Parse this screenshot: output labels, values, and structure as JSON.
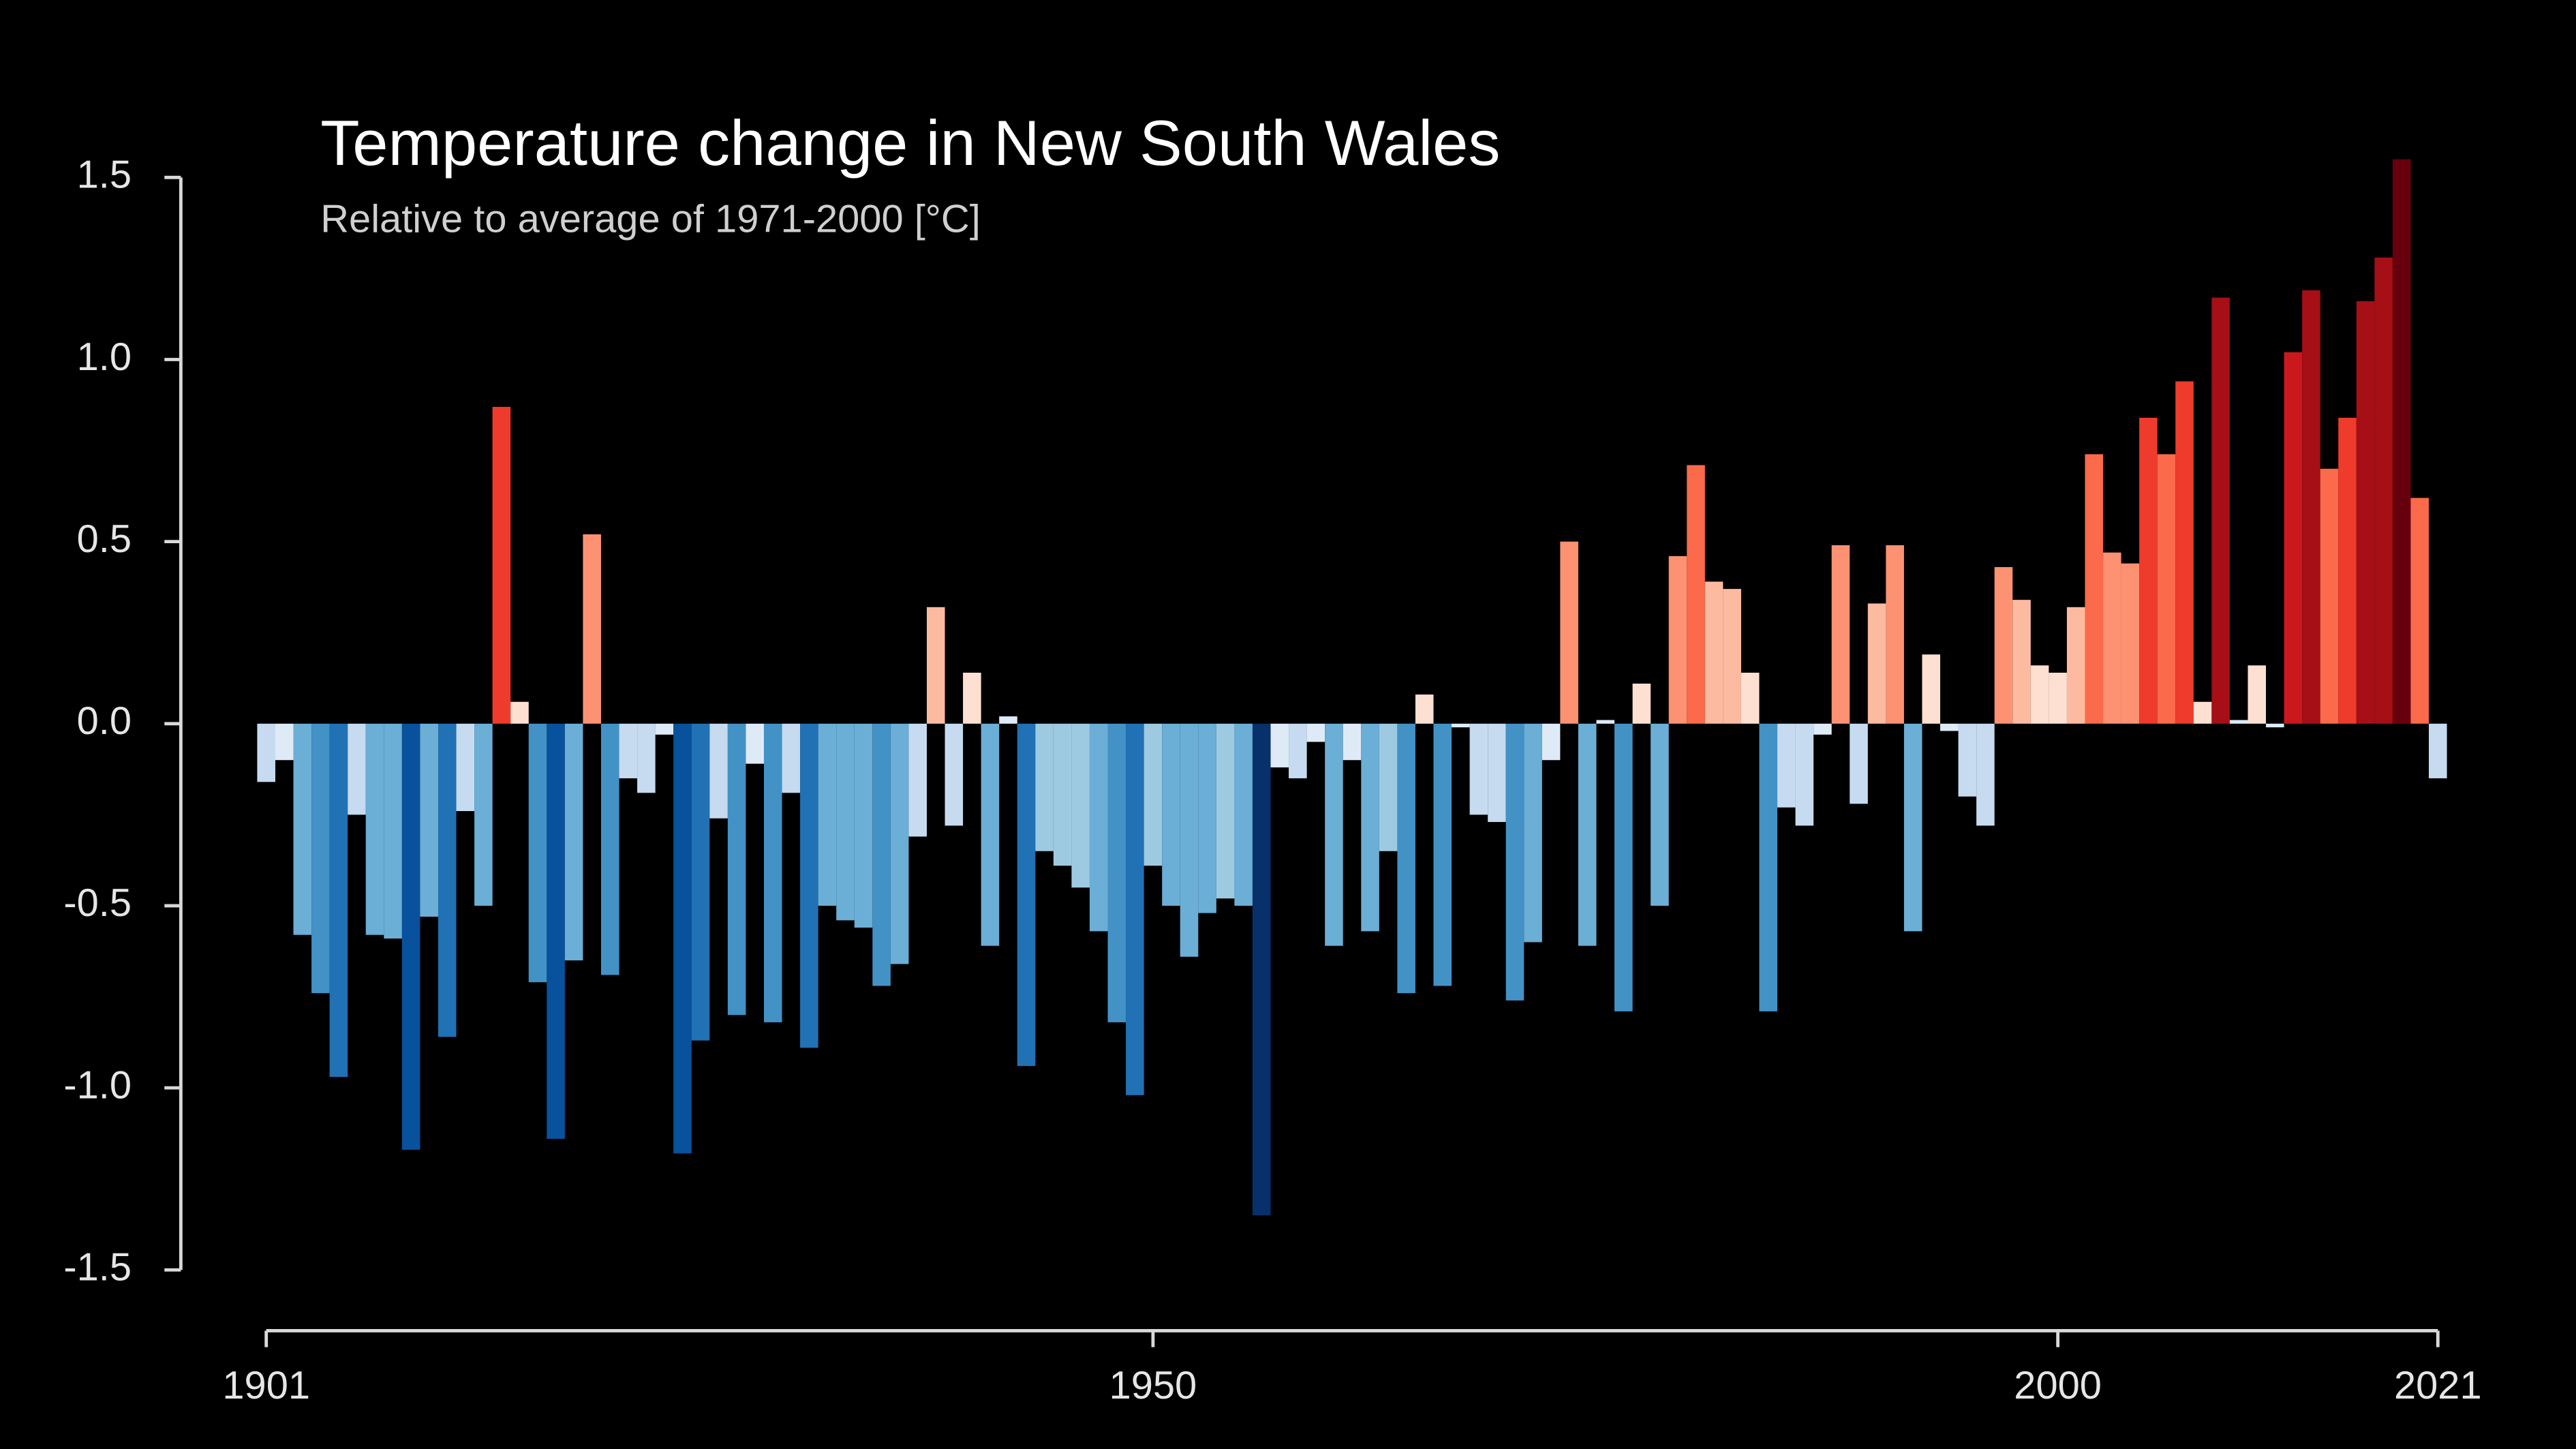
{
  "chart_data": {
    "type": "bar",
    "title": "Temperature change in New South Wales",
    "subtitle": "Relative to average of 1971-2000  [°C]",
    "x": [
      1901,
      1902,
      1903,
      1904,
      1905,
      1906,
      1907,
      1908,
      1909,
      1910,
      1911,
      1912,
      1913,
      1914,
      1915,
      1916,
      1917,
      1918,
      1919,
      1920,
      1921,
      1922,
      1923,
      1924,
      1925,
      1926,
      1927,
      1928,
      1929,
      1930,
      1931,
      1932,
      1933,
      1934,
      1935,
      1936,
      1937,
      1938,
      1939,
      1940,
      1941,
      1942,
      1943,
      1944,
      1945,
      1946,
      1947,
      1948,
      1949,
      1950,
      1951,
      1952,
      1953,
      1954,
      1955,
      1956,
      1957,
      1958,
      1959,
      1960,
      1961,
      1962,
      1963,
      1964,
      1965,
      1966,
      1967,
      1968,
      1969,
      1970,
      1971,
      1972,
      1973,
      1974,
      1975,
      1976,
      1977,
      1978,
      1979,
      1980,
      1981,
      1982,
      1983,
      1984,
      1985,
      1986,
      1987,
      1988,
      1989,
      1990,
      1991,
      1992,
      1993,
      1994,
      1995,
      1996,
      1997,
      1998,
      1999,
      2000,
      2001,
      2002,
      2003,
      2004,
      2005,
      2006,
      2007,
      2008,
      2009,
      2010,
      2011,
      2012,
      2013,
      2014,
      2015,
      2016,
      2017,
      2018,
      2019,
      2020,
      2021
    ],
    "values": [
      -0.16,
      -0.1,
      -0.58,
      -0.74,
      -0.97,
      -0.25,
      -0.58,
      -0.59,
      -1.17,
      -0.53,
      -0.86,
      -0.24,
      -0.5,
      0.87,
      0.06,
      -0.71,
      -1.14,
      -0.65,
      0.52,
      -0.69,
      -0.15,
      -0.19,
      -0.03,
      -1.18,
      -0.87,
      -0.26,
      -0.8,
      -0.11,
      -0.82,
      -0.19,
      -0.89,
      -0.5,
      -0.54,
      -0.56,
      -0.72,
      -0.66,
      -0.31,
      0.32,
      -0.28,
      0.14,
      -0.61,
      0.02,
      -0.94,
      -0.35,
      -0.39,
      -0.45,
      -0.57,
      -0.82,
      -1.02,
      -0.39,
      -0.5,
      -0.64,
      -0.52,
      -0.48,
      -0.5,
      -1.35,
      -0.12,
      -0.15,
      -0.05,
      -0.61,
      -0.1,
      -0.57,
      -0.35,
      -0.74,
      0.08,
      -0.72,
      -0.01,
      -0.25,
      -0.27,
      -0.76,
      -0.6,
      -0.1,
      0.5,
      -0.61,
      0.01,
      -0.79,
      0.11,
      -0.5,
      0.46,
      0.71,
      0.39,
      0.37,
      0.14,
      -0.79,
      -0.23,
      -0.28,
      -0.03,
      0.49,
      -0.22,
      0.33,
      0.49,
      -0.57,
      0.19,
      -0.02,
      -0.2,
      -0.28,
      0.43,
      0.34,
      0.16,
      0.14,
      0.32,
      0.74,
      0.47,
      0.44,
      0.84,
      0.74,
      0.94,
      0.06,
      1.17,
      0.01,
      0.16,
      -0.01,
      1.02,
      1.19,
      0.7,
      0.84,
      1.16,
      1.28,
      1.55,
      0.62,
      -0.15
    ],
    "colors": [
      "#08306b",
      "#08519c",
      "#2171b5",
      "#4292c6",
      "#6baed6",
      "#9ecae1",
      "#c6dbef",
      "#deebf7",
      "#fee0d2",
      "#fcbba1",
      "#fc9272",
      "#fb6a4a",
      "#ef3b2c",
      "#cb181d",
      "#a50f15",
      "#67000d"
    ],
    "xlim": [
      1901,
      2021
    ],
    "xticks": [
      1901,
      1950,
      2000,
      2021
    ],
    "ylim": [
      -1.5,
      1.5
    ],
    "yticks": [
      1.5,
      {
        "value": 1.0,
        "label": "1.0"
      },
      0.5,
      {
        "value": 0.0,
        "label": "0.0"
      },
      -0.5,
      {
        "value": -1.0,
        "label": "-1.0"
      },
      -1.5
    ],
    "grid": false
  }
}
